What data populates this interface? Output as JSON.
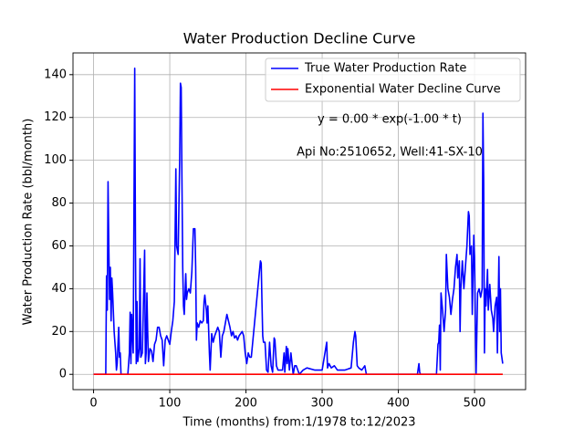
{
  "chart_data": {
    "type": "line",
    "title": "Water Production Decline Curve",
    "xlabel": "Time (months) from:1/1978 to:12/2023",
    "ylabel": "Water Production Rate (bbl/month)",
    "annotations": [
      "y = 0.00 * exp(-1.00 * t)",
      "Api No:2510652, Well:41-SX-10"
    ],
    "xlim": [
      -27,
      567
    ],
    "ylim": [
      -7.15,
      150.15
    ],
    "xticks": [
      0,
      100,
      200,
      300,
      400,
      500
    ],
    "yticks": [
      0,
      20,
      40,
      60,
      80,
      100,
      120,
      140
    ],
    "grid": true,
    "legend": "upper right",
    "series": [
      {
        "name": "True Water Production Rate",
        "color": "#0000ff",
        "x": [
          0,
          16,
          17,
          18,
          19,
          20,
          21,
          22,
          23,
          24,
          25,
          27,
          29,
          30,
          31,
          33,
          34,
          35,
          36,
          45,
          47,
          48,
          49,
          50,
          52,
          54,
          55,
          56,
          57,
          58,
          60,
          61,
          62,
          64,
          67,
          68,
          69,
          70,
          71,
          72,
          74,
          76,
          78,
          80,
          82,
          84,
          86,
          88,
          90,
          92,
          94,
          96,
          98,
          100,
          102,
          104,
          106,
          108,
          109,
          111,
          113,
          114,
          115,
          116,
          117,
          118,
          119,
          121,
          122,
          123,
          125,
          127,
          129,
          131,
          133,
          134,
          135,
          136,
          138,
          140,
          142,
          144,
          145,
          146,
          148,
          149,
          150,
          152,
          153,
          155,
          157,
          159,
          161,
          163,
          165,
          167,
          169,
          171,
          173,
          175,
          177,
          179,
          181,
          183,
          185,
          187,
          189,
          191,
          193,
          195,
          197,
          199,
          201,
          203,
          205,
          207,
          219,
          220,
          221,
          222,
          223,
          225,
          227,
          229,
          231,
          233,
          235,
          237,
          238,
          240,
          242,
          245,
          248,
          250,
          251,
          253,
          254,
          255,
          257,
          259,
          262,
          264,
          266,
          268,
          270,
          275,
          280,
          290,
          300,
          306,
          307,
          309,
          312,
          316,
          320,
          330,
          338,
          341,
          343,
          344,
          346,
          348,
          352,
          356,
          358,
          425,
          427,
          428,
          429,
          450,
          452,
          453,
          454,
          455,
          456,
          458,
          460,
          462,
          463,
          465,
          467,
          469,
          471,
          473,
          475,
          477,
          478,
          480,
          481,
          482,
          484,
          486,
          488,
          490,
          492,
          493,
          494,
          496,
          497,
          499,
          500,
          502,
          504,
          506,
          508,
          510,
          511,
          512,
          513,
          514,
          515,
          517,
          518,
          520,
          522,
          524,
          525,
          527,
          529,
          530,
          532,
          533,
          534,
          535,
          537
        ],
        "values": [
          0,
          0,
          46,
          30,
          90,
          60,
          35,
          50,
          25,
          45,
          38,
          20,
          10,
          2,
          5,
          22,
          8,
          10,
          0,
          0,
          10,
          29,
          5,
          28,
          10,
          143,
          60,
          5,
          34,
          6,
          12,
          54,
          8,
          10,
          58,
          5,
          10,
          38,
          20,
          6,
          12,
          11,
          6,
          14,
          16,
          22,
          22,
          18,
          16,
          4,
          16,
          18,
          16,
          14,
          20,
          25,
          34,
          96,
          60,
          56,
          100,
          136,
          134,
          90,
          50,
          32,
          28,
          47,
          35,
          38,
          40,
          38,
          48,
          68,
          68,
          50,
          16,
          24,
          22,
          25,
          24,
          25,
          34,
          37,
          30,
          24,
          32,
          10,
          2,
          19,
          15,
          18,
          20,
          22,
          20,
          8,
          18,
          20,
          24,
          28,
          25,
          22,
          18,
          20,
          17,
          18,
          16,
          18,
          19,
          20,
          18,
          10,
          5,
          10,
          8,
          8,
          53,
          52,
          34,
          18,
          15,
          15,
          2,
          1,
          15,
          4,
          1,
          17,
          16,
          4,
          2,
          2,
          2,
          10,
          1,
          13,
          5,
          12,
          2,
          10,
          0,
          4,
          4,
          2,
          0,
          2,
          3,
          2,
          2,
          15,
          3,
          5,
          3,
          4,
          2,
          2,
          3,
          15,
          20,
          18,
          4,
          3,
          2,
          4,
          0,
          0,
          5,
          1,
          0,
          0,
          14,
          15,
          23,
          2,
          38,
          30,
          20,
          30,
          56,
          40,
          36,
          28,
          35,
          40,
          50,
          56,
          45,
          53,
          20,
          40,
          53,
          40,
          50,
          60,
          76,
          74,
          56,
          60,
          28,
          65,
          55,
          0,
          38,
          40,
          36,
          40,
          122,
          90,
          10,
          40,
          32,
          49,
          30,
          42,
          30,
          26,
          20,
          32,
          36,
          10,
          55,
          20,
          40,
          10,
          5
        ]
      },
      {
        "name": "Exponential Water Decline Curve",
        "color": "#ff0000",
        "x": [
          0,
          537
        ],
        "values": [
          0,
          0
        ]
      }
    ]
  }
}
